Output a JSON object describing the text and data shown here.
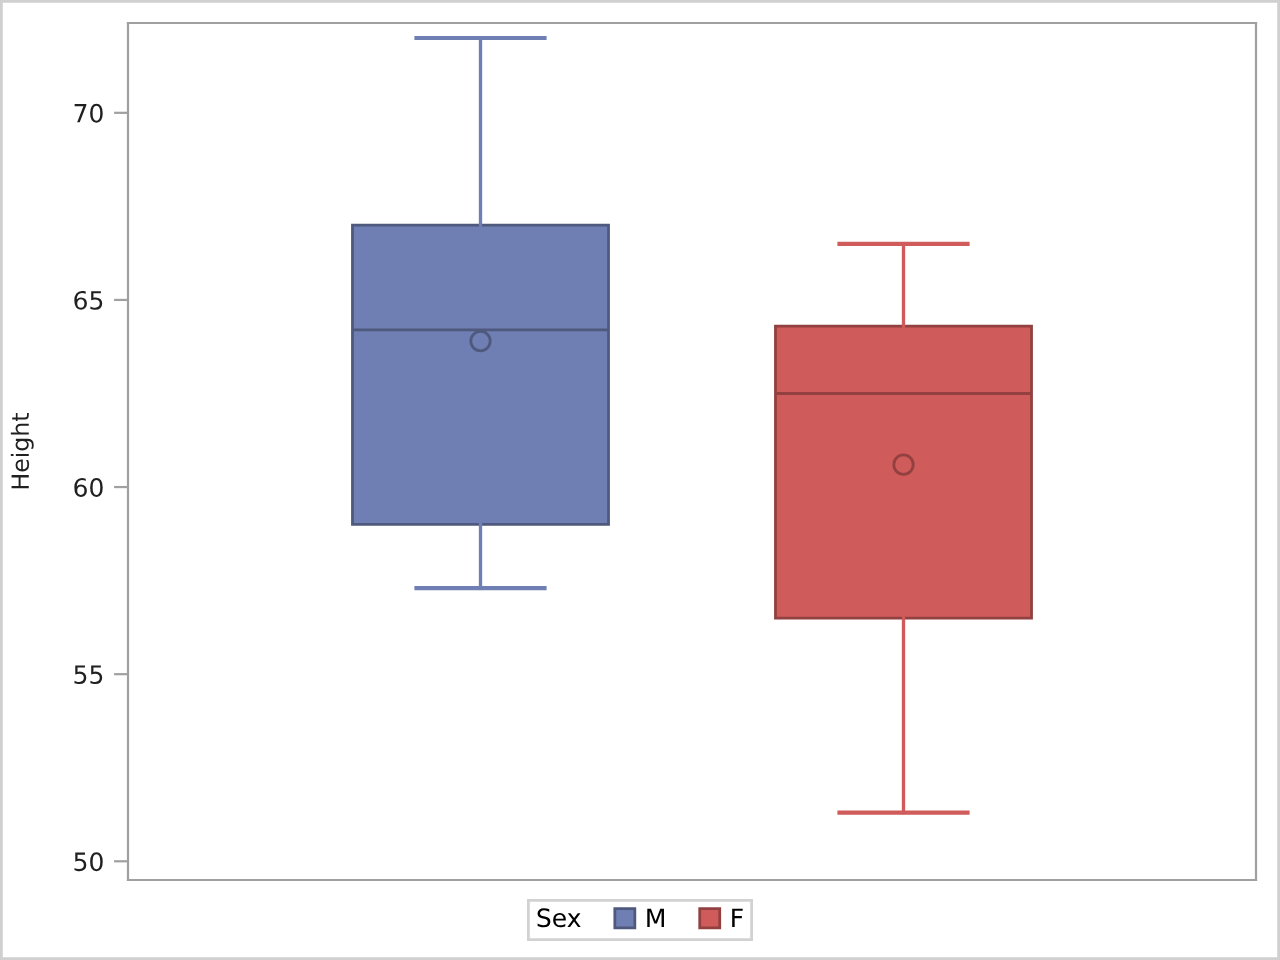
{
  "chart_data": {
    "type": "box",
    "ylabel": "Height",
    "legend_title": "Sex",
    "categories": [
      null
    ],
    "series": [
      {
        "name": "M",
        "color": "#6f7fb3",
        "boxes": [
          {
            "low": 57.3,
            "q1": 59,
            "median": 64.2,
            "q3": 67,
            "high": 72,
            "mean": 63.9
          }
        ]
      },
      {
        "name": "F",
        "color": "#d05b5b",
        "boxes": [
          {
            "low": 51.3,
            "q1": 56.5,
            "median": 62.5,
            "q3": 64.3,
            "high": 66.5,
            "mean": 60.6
          }
        ]
      }
    ],
    "ylim": [
      49.5,
      72.4
    ],
    "yticks": [
      50,
      55,
      60,
      65,
      70
    ],
    "legend": "bottom",
    "grid": false,
    "tick_labels": "y",
    "marker": "circle"
  }
}
